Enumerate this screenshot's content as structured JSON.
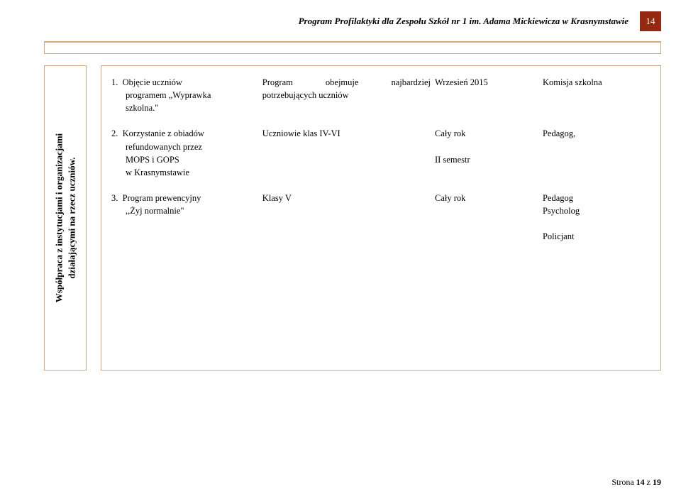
{
  "header": {
    "title": "Program Profilaktyki dla  Zespołu Szkół nr 1 im. Adama Mickiewicza w Krasnymstawie",
    "page_badge": "14"
  },
  "sidebar": {
    "line1": "Współpraca z instytucjami i organizacjami",
    "line2": "działającymi na rzecz uczniów."
  },
  "rows": [
    {
      "task_num": "1.",
      "task_l1": "Objęcie uczniów",
      "task_l2": "programem „Wyprawka",
      "task_l3": "szkolna.\"",
      "desc_l1": "Program        obejmuje        najbardziej",
      "desc_l2": "potrzebujących uczniów",
      "term_l1": "Wrzesień 2015",
      "term_l2": "",
      "resp_l1": "Komisja szkolna",
      "resp_l2": ""
    },
    {
      "task_num": "2.",
      "task_l1": "Korzystanie z obiadów",
      "task_l2": "refundowanych przez",
      "task_l3": "MOPS i GOPS",
      "task_l4": "w Krasnymstawie",
      "desc_l1": " Uczniowie klas IV-VI",
      "term_l1": "Cały rok",
      "term_l2": " II semestr",
      "resp_l1": "Pedagog,"
    },
    {
      "task_num": "3.",
      "task_l1": "Program prewencyjny",
      "task_l2": ",,Żyj normalnie\"",
      "desc_l1": " Klasy V",
      "term_l1": "Cały rok",
      "resp_l1": "Pedagog",
      "resp_l2": "Psycholog",
      "resp_l3": " Policjant"
    }
  ],
  "footer": {
    "prefix": "Strona ",
    "page": "14",
    "mid": " z ",
    "total": "19"
  },
  "colors": {
    "border": "#d8a87a",
    "badge_bg": "#942911",
    "badge_fg": "#ffffff",
    "text": "#000000",
    "background": "#ffffff"
  }
}
